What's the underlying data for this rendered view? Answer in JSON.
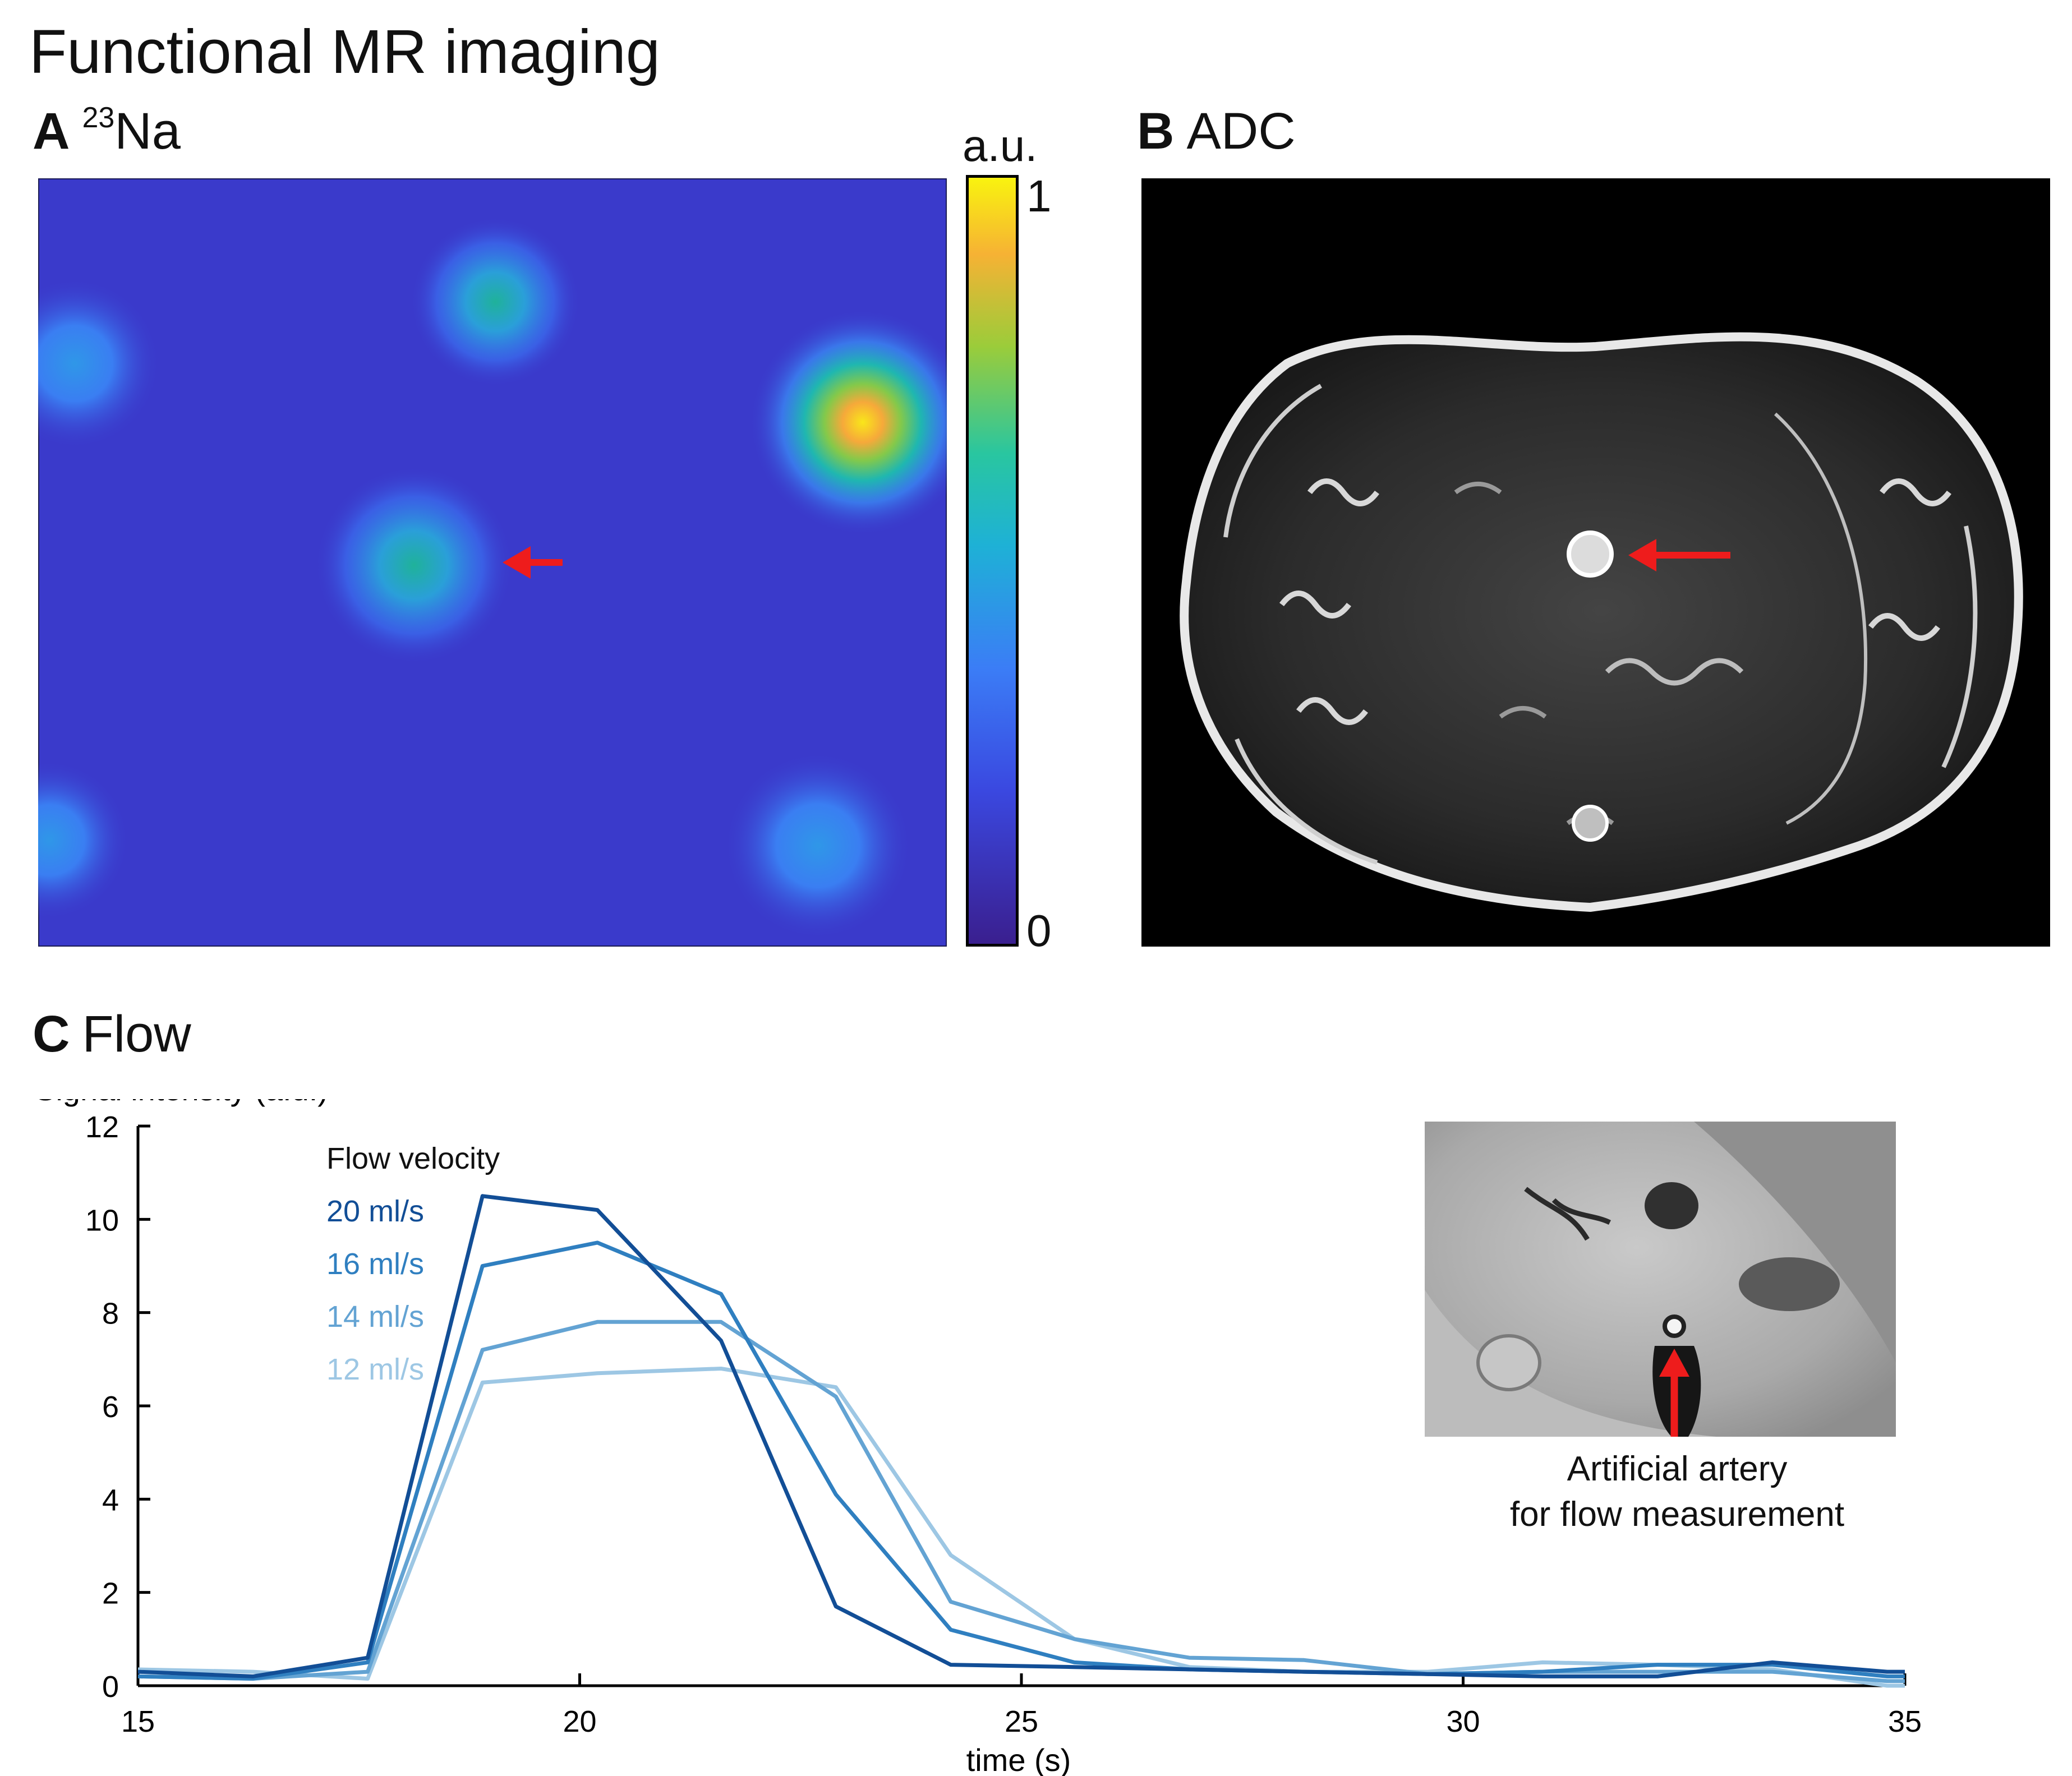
{
  "figure_title": "Functional MR imaging",
  "panels": {
    "a": {
      "letter": "A",
      "sup": "23",
      "name": "Na"
    },
    "b": {
      "letter": "B",
      "name": "ADC"
    },
    "c": {
      "letter": "C",
      "name": "Flow"
    }
  },
  "colorbar": {
    "unit": "a.u.",
    "max": "1",
    "min": "0"
  },
  "inset": {
    "caption_line1": "Artificial artery",
    "caption_line2": "for flow measurement"
  },
  "chart_data": {
    "type": "line",
    "title": "",
    "xlabel": "time (s)",
    "ylabel": "Signal intensity (a.u.)",
    "xlim": [
      15,
      35
    ],
    "ylim": [
      0,
      12
    ],
    "xticks": [
      15,
      20,
      25,
      30,
      35
    ],
    "yticks": [
      0,
      2,
      4,
      6,
      8,
      10,
      12
    ],
    "legend_title": "Flow velocity",
    "legend_position": "top-left",
    "grid": false,
    "x": [
      15,
      16.3,
      17.6,
      18.9,
      20.2,
      21.6,
      22.9,
      24.2,
      25.6,
      26.9,
      28.2,
      29.6,
      30.9,
      32.2,
      33.5,
      34.8,
      35
    ],
    "series": [
      {
        "name": "20 ml/s",
        "color": "#124e96",
        "values": [
          0.3,
          0.2,
          0.6,
          10.5,
          10.2,
          7.4,
          1.7,
          0.45,
          0.4,
          0.35,
          0.3,
          0.25,
          0.2,
          0.2,
          0.5,
          0.3,
          0.3
        ]
      },
      {
        "name": "16 ml/s",
        "color": "#2f7fc0",
        "values": [
          0.2,
          0.15,
          0.5,
          9.0,
          9.5,
          8.4,
          4.1,
          1.2,
          0.5,
          0.35,
          0.3,
          0.25,
          0.3,
          0.45,
          0.45,
          0.2,
          0.2
        ]
      },
      {
        "name": "14 ml/s",
        "color": "#63a3d3",
        "values": [
          0.2,
          0.15,
          0.3,
          7.2,
          7.8,
          7.8,
          6.2,
          1.8,
          1.0,
          0.6,
          0.55,
          0.25,
          0.3,
          0.3,
          0.3,
          0.1,
          0.1
        ]
      },
      {
        "name": "12 ml/s",
        "color": "#9dc7e4",
        "values": [
          0.35,
          0.3,
          0.15,
          6.5,
          6.7,
          6.8,
          6.4,
          2.8,
          1.0,
          0.4,
          0.3,
          0.3,
          0.5,
          0.45,
          0.35,
          0.0,
          0.0
        ]
      }
    ]
  }
}
